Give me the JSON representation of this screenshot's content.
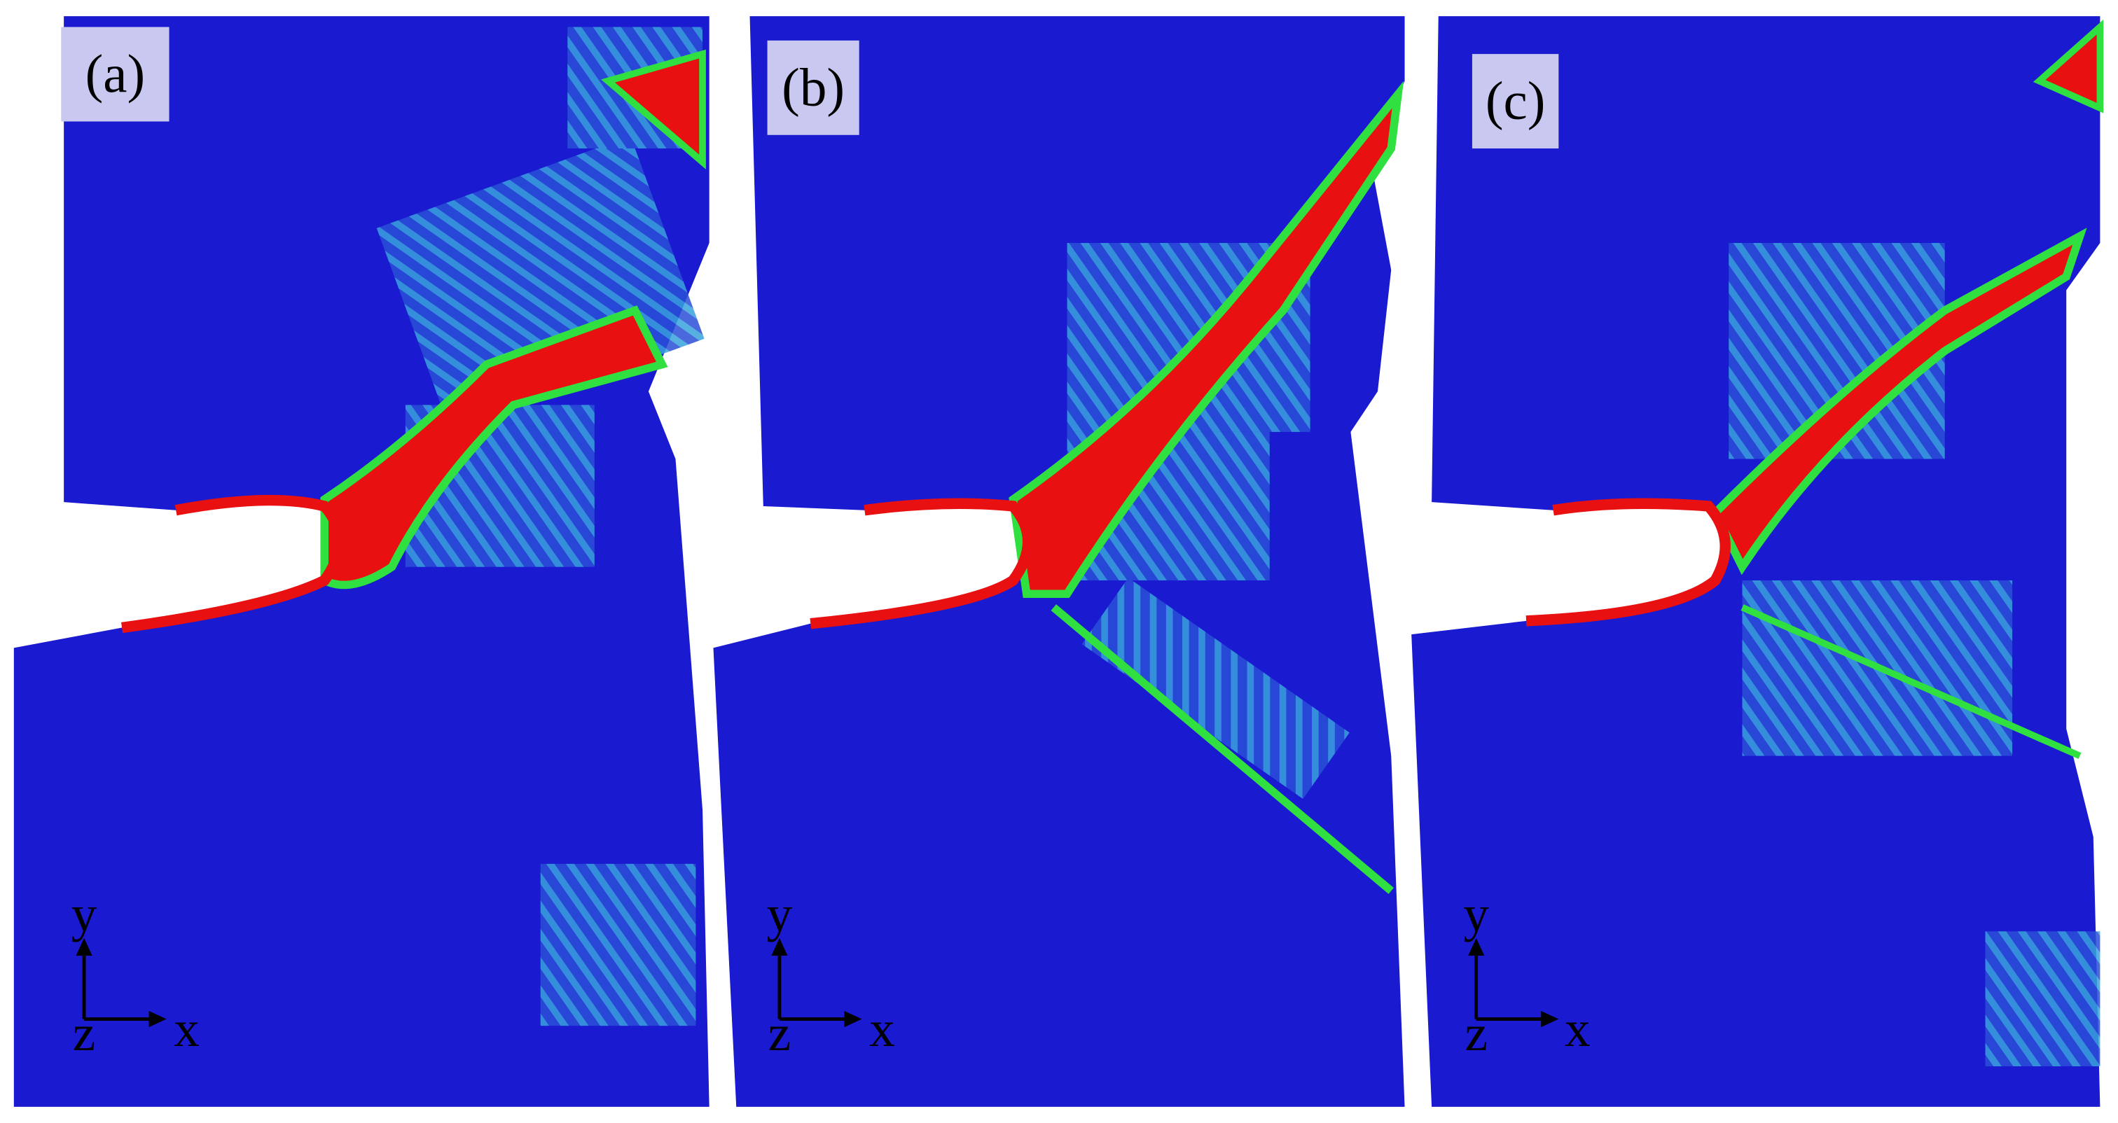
{
  "panels": [
    {
      "label": "(a)",
      "axes": {
        "y": "y",
        "x": "x",
        "z": "z"
      }
    },
    {
      "label": "(b)",
      "axes": {
        "y": "y",
        "x": "x",
        "z": "z"
      }
    },
    {
      "label": "(c)",
      "axes": {
        "y": "y",
        "x": "x",
        "z": "z"
      }
    }
  ]
}
